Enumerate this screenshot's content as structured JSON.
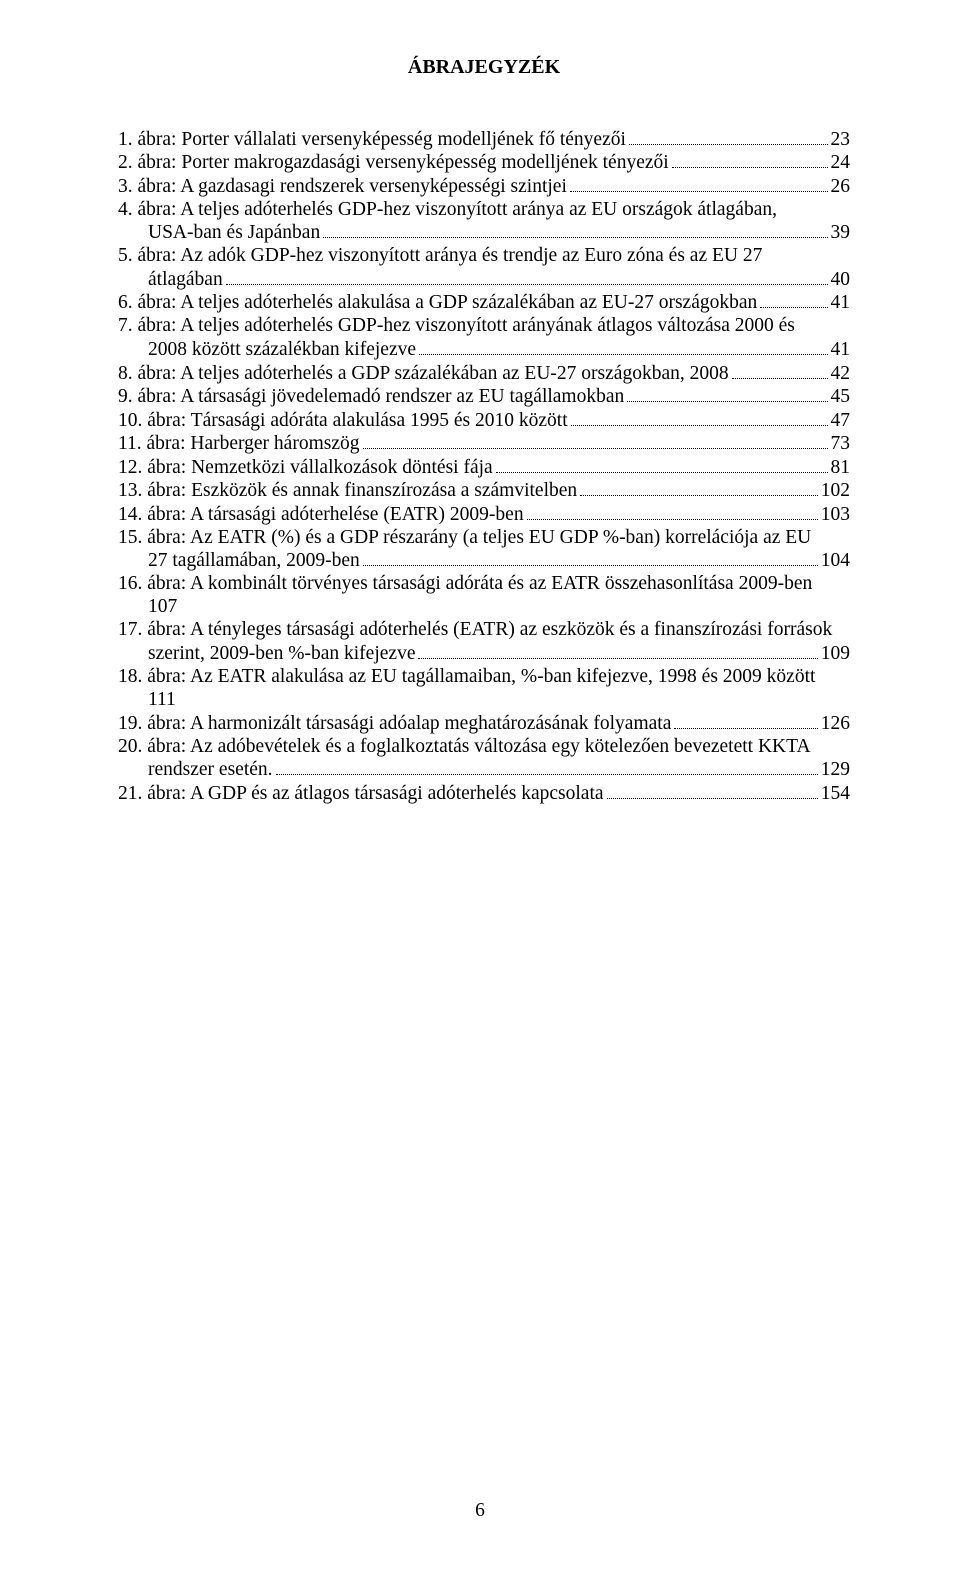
{
  "title": "ÁBRAJEGYZÉK",
  "entries": [
    {
      "num": "1.",
      "text": "ábra: Porter vállalati versenyképesség modelljének fő tényezői",
      "page": "23",
      "indent": false
    },
    {
      "num": "2.",
      "text": "ábra: Porter makrogazdasági versenyképesség modelljének tényezői",
      "page": "24",
      "indent": false
    },
    {
      "num": "3.",
      "text": "ábra: A gazdasagi rendszerek versenyképességi szintjei",
      "page": "26",
      "indent": false
    },
    {
      "num": "4.",
      "first": "ábra: A teljes adóterhelés GDP-hez viszonyított aránya az EU országok átlagában,",
      "second": "USA-ban és Japánban",
      "page": "39",
      "indent": true
    },
    {
      "num": "5.",
      "first": "ábra: Az adók GDP-hez viszonyított aránya és trendje az Euro zóna és az EU 27",
      "second": "átlagában",
      "page": "40",
      "indent": true
    },
    {
      "num": "6.",
      "text": "ábra: A teljes adóterhelés alakulása a GDP százalékában az EU-27 országokban",
      "page": "41",
      "indent": false
    },
    {
      "num": "7.",
      "first": "ábra: A teljes adóterhelés GDP-hez viszonyított arányának átlagos változása 2000 és",
      "second": "2008 között százalékban kifejezve",
      "page": "41",
      "indent": true
    },
    {
      "num": "8.",
      "text": "ábra: A teljes adóterhelés a GDP százalékában az EU-27 országokban, 2008",
      "page": "42",
      "indent": false
    },
    {
      "num": "9.",
      "text": "ábra: A társasági jövedelemadó rendszer az EU tagállamokban",
      "page": "45",
      "indent": false
    },
    {
      "num": "10.",
      "text": "ábra: Társasági adóráta alakulása 1995 és 2010 között",
      "page": "47",
      "indent": false
    },
    {
      "num": "11.",
      "text": "ábra: Harberger háromszög",
      "page": "73",
      "indent": false
    },
    {
      "num": "12.",
      "text": "ábra: Nemzetközi vállalkozások döntési fája",
      "page": "81",
      "indent": false
    },
    {
      "num": "13.",
      "text": "ábra: Eszközök és annak finanszírozása a számvitelben",
      "page": "102",
      "indent": false
    },
    {
      "num": "14.",
      "text": "ábra: A társasági adóterhelése (EATR) 2009-ben",
      "page": "103",
      "indent": false
    },
    {
      "num": "15.",
      "first": "ábra: Az EATR (%) és a GDP részarány (a teljes EU GDP %-ban) korrelációja az EU",
      "second": "27 tagállamában, 2009-ben",
      "page": "104",
      "indent": true
    },
    {
      "num": "16.",
      "first": "ábra: A kombinált törvényes társasági adóráta és az EATR összehasonlítása 2009-ben",
      "second": "107",
      "page": "",
      "indent": true,
      "noleader": true
    },
    {
      "num": "17.",
      "first": "ábra: A tényleges társasági adóterhelés (EATR) az eszközök és a finanszírozási források",
      "second": "szerint, 2009-ben %-ban kifejezve",
      "page": "109",
      "indent": true
    },
    {
      "num": "18.",
      "first": "ábra: Az EATR alakulása az EU tagállamaiban, %-ban kifejezve, 1998 és 2009 között",
      "second": "111",
      "page": "",
      "indent": true,
      "noleader": true
    },
    {
      "num": "19.",
      "text": "ábra: A harmonizált társasági adóalap meghatározásának folyamata",
      "page": "126",
      "indent": false
    },
    {
      "num": "20.",
      "first": "ábra: Az adóbevételek és a foglalkoztatás változása egy kötelezően bevezetett KKTA",
      "second": "rendszer esetén.",
      "page": "129",
      "indent": true
    },
    {
      "num": "21.",
      "text": "ábra: A GDP és az átlagos társasági adóterhelés kapcsolata",
      "page": "154",
      "indent": false
    }
  ],
  "pageNumber": "6"
}
